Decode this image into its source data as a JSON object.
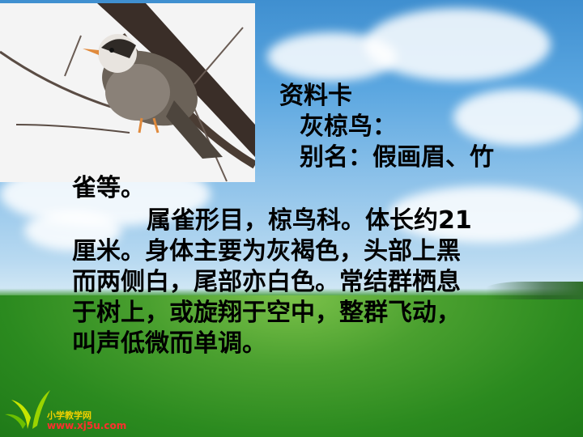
{
  "card_title": "资料卡",
  "bird_name": "灰椋鸟：",
  "alias_line1": "别名：假画眉、竹",
  "alias_line2": "雀等。",
  "desc_lines": [
    "属雀形目，椋鸟科。体长约21",
    "厘米。身体主要为灰褐色，头部上黑",
    "而两侧白，尾部亦白色。常结群栖息",
    "于树上，或旋翔于空中，整群飞动，",
    "叫声低微而单调。"
  ],
  "logo": {
    "name": "小学教学网",
    "url": "www.xj5u.com"
  }
}
